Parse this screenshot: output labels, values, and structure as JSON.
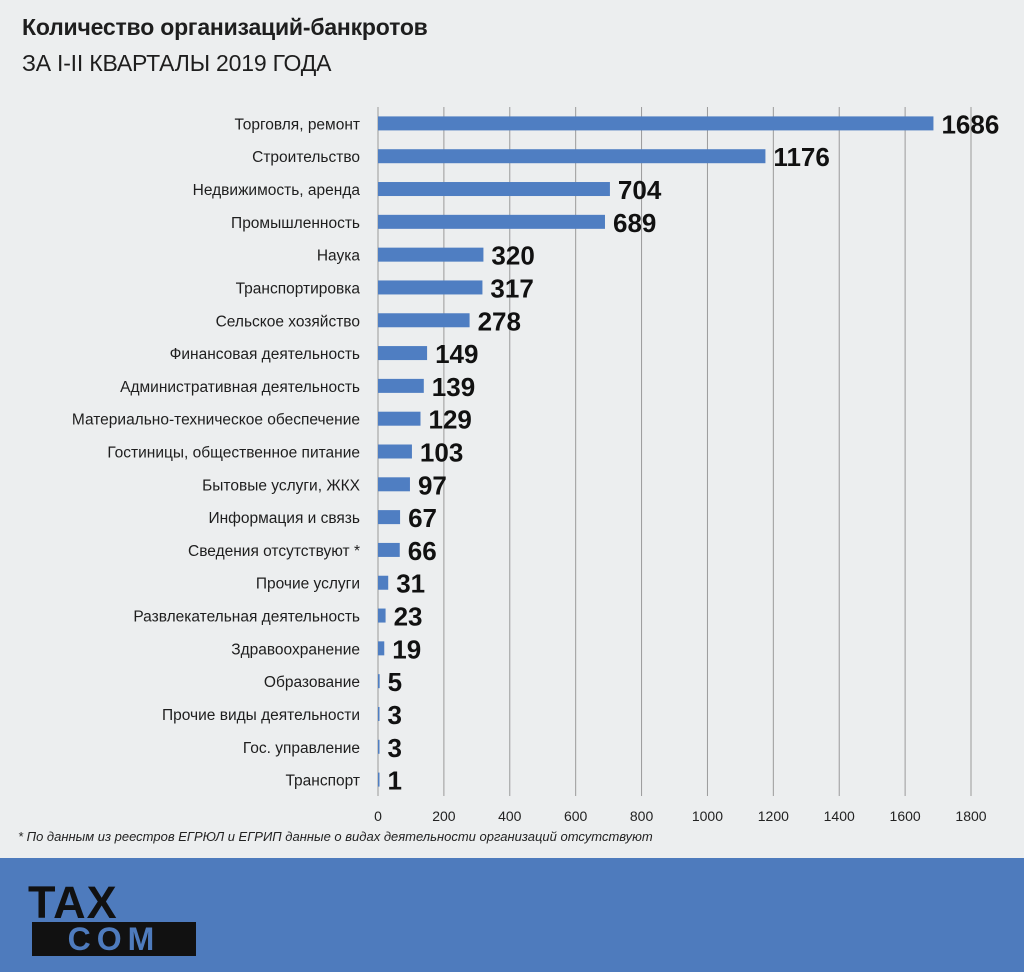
{
  "header": {
    "title": "Количество организаций-банкротов",
    "subtitle": "ЗА I-II КВАРТАЛЫ 2019 ГОДА"
  },
  "footnote": "* По данным из реестров ЕГРЮЛ и ЕГРИП данные о видах деятельности организаций отсутствуют",
  "footer": {
    "logo_text_top": "TAX",
    "logo_text_bottom": "COM",
    "background_color": "#4e7bbd"
  },
  "colors": {
    "bar": "#4f7ec2",
    "grid": "#9a9a9a",
    "text": "#1e1e1e"
  },
  "chart_data": {
    "type": "bar",
    "orientation": "horizontal",
    "title": "Количество организаций-банкротов",
    "subtitle": "ЗА I-II КВАРТАЛЫ 2019 ГОДА",
    "categories": [
      "Торговля, ремонт",
      "Строительство",
      "Недвижимость, аренда",
      "Промышленность",
      "Наука",
      "Транспортировка",
      "Сельское хозяйство",
      "Финансовая деятельность",
      "Административная деятельность",
      "Материально-техническое обеспечение",
      "Гостиницы, общественное питание",
      "Бытовые услуги, ЖКХ",
      "Информация и связь",
      "Сведения отсутствуют *",
      "Прочие услуги",
      "Развлекательная деятельность",
      "Здравоохранение",
      "Образование",
      "Прочие виды деятельности",
      "Гос. управление",
      "Транспорт"
    ],
    "values": [
      1686,
      1176,
      704,
      689,
      320,
      317,
      278,
      149,
      139,
      129,
      103,
      97,
      67,
      66,
      31,
      23,
      19,
      5,
      3,
      3,
      1
    ],
    "xlim": [
      0,
      1800
    ],
    "xticks": [
      0,
      200,
      400,
      600,
      800,
      1000,
      1200,
      1400,
      1600,
      1800
    ],
    "grid": "vertical",
    "legend": "none",
    "xlabel": "",
    "ylabel": ""
  }
}
